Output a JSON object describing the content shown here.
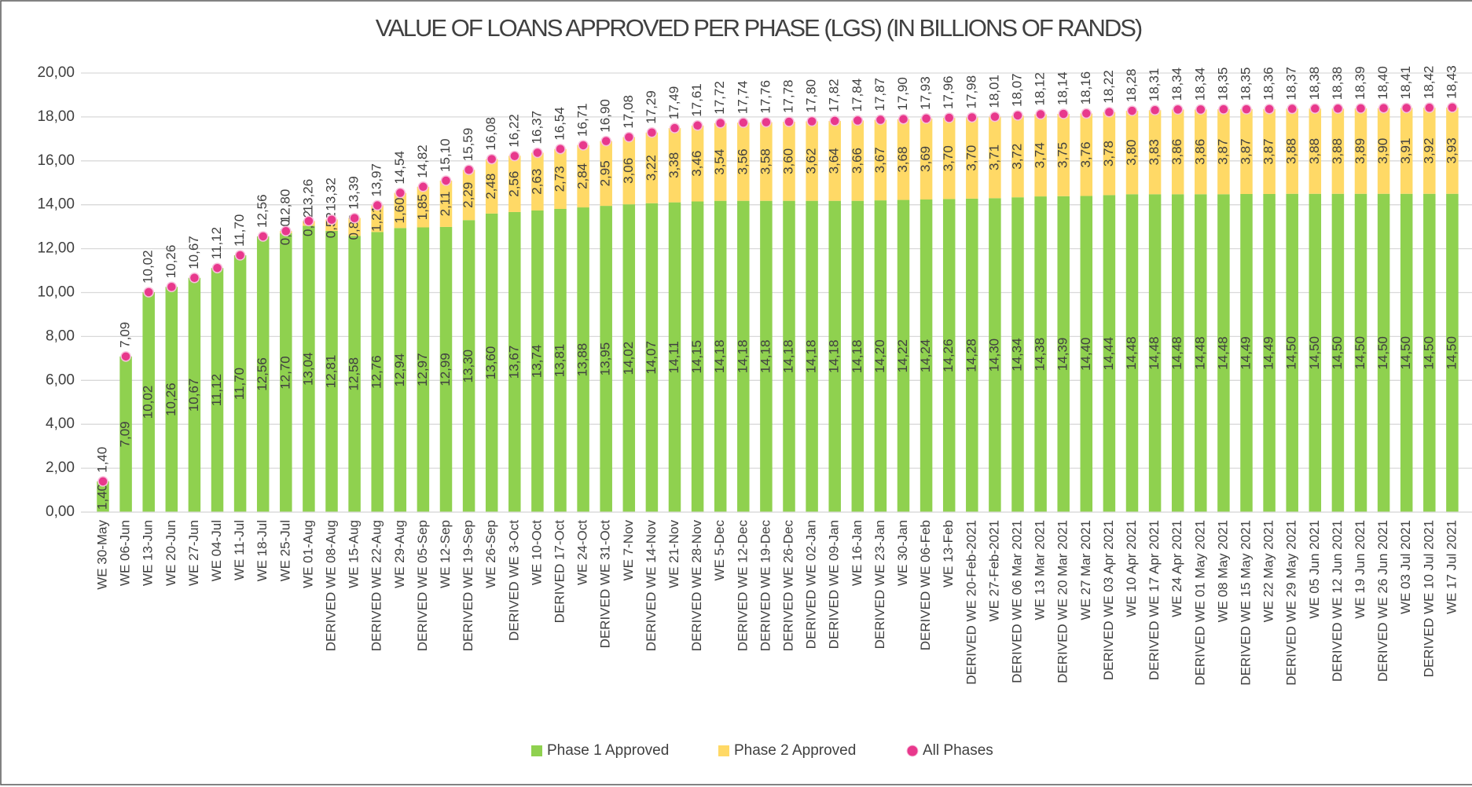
{
  "chart_data": {
    "type": "bar",
    "stacked": true,
    "title": "VALUE OF LOANS APPROVED PER PHASE (LGS) (IN BILLIONS OF RANDS)",
    "categories": [
      "WE 30-May",
      "WE 06-Jun",
      "WE 13-Jun",
      "WE 20-Jun",
      "WE 27-Jun",
      "WE 04-Jul",
      "WE 11-Jul",
      "WE 18-Jul",
      "WE 25-Jul",
      "WE 01-Aug",
      "DERIVED WE 08-Aug",
      "WE 15-Aug",
      "DERIVED WE 22-Aug",
      "WE 29-Aug",
      "DERIVED WE 05-Sep",
      "WE 12-Sep",
      "DERIVED WE 19-Sep",
      "WE 26-Sep",
      "DERIVED WE 3-Oct",
      "WE 10-Oct",
      "DERIVED 17-Oct",
      "WE 24-Oct",
      "DERIVED WE 31-Oct",
      "WE 7-Nov",
      "DERIVED WE 14-Nov",
      "WE 21-Nov",
      "DERIVED WE 28-Nov",
      "WE 5-Dec",
      "DERIVED WE 12-Dec",
      "DERIVED WE 19-Dec",
      "DERIVED WE 26-Dec",
      "DERIVED WE 02-Jan",
      "DERIVED WE 09-Jan",
      "WE 16-Jan",
      "DERIVED WE 23-Jan",
      "WE 30-Jan",
      "DERIVED WE 06-Feb",
      "WE 13-Feb",
      "DERIVED WE 20-Feb-2021",
      "WE 27-Feb-2021",
      "DERIVED WE 06 Mar 2021",
      "WE 13 Mar 2021",
      "DERIVED WE 20 Mar 2021",
      "WE 27 Mar 2021",
      "DERIVED WE 03 Apr 2021",
      "WE 10 Apr 2021",
      "DERIVED WE 17 Apr 2021",
      "WE 24 Apr 2021",
      "DERIVED WE 01 May 2021",
      "WE 08 May 2021",
      "DERIVED WE 15 May 2021",
      "WE 22 May 2021",
      "DERIVED WE 29 May 2021",
      "WE 05 Jun 2021",
      "DERIVED WE 12 Jun 2021",
      "WE 19 Jun 2021",
      "DERIVED WE 26 Jun 2021",
      "WE 03 Jul 2021",
      "DERIVED WE 10 Jul 2021",
      "WE 17 Jul 2021"
    ],
    "series": [
      {
        "name": "Phase 1 Approved",
        "type": "bar",
        "color": "#8fd14f",
        "values": [
          1.4,
          7.09,
          10.02,
          10.26,
          10.67,
          11.12,
          11.7,
          12.56,
          12.7,
          13.04,
          12.81,
          12.58,
          12.76,
          12.94,
          12.97,
          12.99,
          13.3,
          13.6,
          13.67,
          13.74,
          13.81,
          13.88,
          13.95,
          14.02,
          14.07,
          14.11,
          14.15,
          14.18,
          14.18,
          14.18,
          14.18,
          14.18,
          14.18,
          14.18,
          14.2,
          14.22,
          14.24,
          14.26,
          14.28,
          14.3,
          14.34,
          14.38,
          14.39,
          14.4,
          14.44,
          14.48,
          14.48,
          14.48,
          14.48,
          14.48,
          14.49,
          14.49,
          14.5,
          14.5,
          14.5,
          14.5,
          14.5,
          14.5,
          14.5,
          14.5
        ],
        "value_labels": [
          "1,40",
          "7,09",
          "10,02",
          "10,26",
          "10,67",
          "11,12",
          "11,70",
          "12,56",
          "12,70",
          "13,04",
          "12,81",
          "12,58",
          "12,76",
          "12,94",
          "12,97",
          "12,99",
          "13,30",
          "13,60",
          "13,67",
          "13,74",
          "13,81",
          "13,88",
          "13,95",
          "14,02",
          "14,07",
          "14,11",
          "14,15",
          "14,18",
          "14,18",
          "14,18",
          "14,18",
          "14,18",
          "14,18",
          "14,18",
          "14,20",
          "14,22",
          "14,24",
          "14,26",
          "14,28",
          "14,30",
          "14,34",
          "14,38",
          "14,39",
          "14,40",
          "14,44",
          "14,48",
          "14,48",
          "14,48",
          "14,48",
          "14,48",
          "14,49",
          "14,49",
          "14,50",
          "14,50",
          "14,50",
          "14,50",
          "14,50",
          "14,50",
          "14,50",
          "14,50"
        ]
      },
      {
        "name": "Phase 2 Approved",
        "type": "bar",
        "color": "#ffd966",
        "values": [
          null,
          null,
          null,
          null,
          null,
          null,
          null,
          null,
          0.1,
          0.22,
          0.52,
          0.82,
          1.21,
          1.6,
          1.85,
          2.11,
          2.29,
          2.48,
          2.56,
          2.63,
          2.73,
          2.84,
          2.95,
          3.06,
          3.22,
          3.38,
          3.46,
          3.54,
          3.56,
          3.58,
          3.6,
          3.62,
          3.64,
          3.66,
          3.67,
          3.68,
          3.69,
          3.7,
          3.7,
          3.71,
          3.72,
          3.74,
          3.75,
          3.76,
          3.78,
          3.8,
          3.83,
          3.86,
          3.86,
          3.87,
          3.87,
          3.87,
          3.88,
          3.88,
          3.88,
          3.89,
          3.9,
          3.91,
          3.92,
          3.93
        ],
        "value_labels": [
          null,
          null,
          null,
          null,
          null,
          null,
          null,
          null,
          "0,10",
          "0,22",
          "0,52",
          "0,82",
          "1,21",
          "1,60",
          "1,85",
          "2,11",
          "2,29",
          "2,48",
          "2,56",
          "2,63",
          "2,73",
          "2,84",
          "2,95",
          "3,06",
          "3,22",
          "3,38",
          "3,46",
          "3,54",
          "3,56",
          "3,58",
          "3,60",
          "3,62",
          "3,64",
          "3,66",
          "3,67",
          "3,68",
          "3,69",
          "3,70",
          "3,70",
          "3,71",
          "3,72",
          "3,74",
          "3,75",
          "3,76",
          "3,78",
          "3,80",
          "3,83",
          "3,86",
          "3,86",
          "3,87",
          "3,87",
          "3,87",
          "3,88",
          "3,88",
          "3,88",
          "3,89",
          "3,90",
          "3,91",
          "3,92",
          "3,93"
        ]
      },
      {
        "name": "All Phases",
        "type": "scatter",
        "color": "#e8388c",
        "values": [
          1.4,
          7.09,
          10.02,
          10.26,
          10.67,
          11.12,
          11.7,
          12.56,
          12.8,
          13.26,
          13.32,
          13.39,
          13.97,
          14.54,
          14.82,
          15.1,
          15.59,
          16.08,
          16.22,
          16.37,
          16.54,
          16.71,
          16.9,
          17.08,
          17.29,
          17.49,
          17.61,
          17.72,
          17.74,
          17.76,
          17.78,
          17.8,
          17.82,
          17.84,
          17.87,
          17.9,
          17.93,
          17.96,
          17.98,
          18.01,
          18.07,
          18.12,
          18.14,
          18.16,
          18.22,
          18.28,
          18.31,
          18.34,
          18.34,
          18.35,
          18.35,
          18.36,
          18.37,
          18.38,
          18.38,
          18.39,
          18.4,
          18.41,
          18.42,
          18.43
        ],
        "value_labels": [
          "1,40",
          "7,09",
          "10,02",
          "10,26",
          "10,67",
          "11,12",
          "11,70",
          "12,56",
          "12,80",
          "13,26",
          "13,32",
          "13,39",
          "13,97",
          "14,54",
          "14,82",
          "15,10",
          "15,59",
          "16,08",
          "16,22",
          "16,37",
          "16,54",
          "16,71",
          "16,90",
          "17,08",
          "17,29",
          "17,49",
          "17,61",
          "17,72",
          "17,74",
          "17,76",
          "17,78",
          "17,80",
          "17,82",
          "17,84",
          "17,87",
          "17,90",
          "17,93",
          "17,96",
          "17,98",
          "18,01",
          "18,07",
          "18,12",
          "18,14",
          "18,16",
          "18,22",
          "18,28",
          "18,31",
          "18,34",
          "18,34",
          "18,35",
          "18,35",
          "18,36",
          "18,37",
          "18,38",
          "18,38",
          "18,39",
          "18,40",
          "18,41",
          "18,42",
          "18,43"
        ]
      }
    ],
    "ylim": [
      0,
      20
    ],
    "yticks": [
      {
        "value": 0,
        "label": "0,00"
      },
      {
        "value": 2,
        "label": "2,00"
      },
      {
        "value": 4,
        "label": "4,00"
      },
      {
        "value": 6,
        "label": "6,00"
      },
      {
        "value": 8,
        "label": "8,00"
      },
      {
        "value": 10,
        "label": "10,00"
      },
      {
        "value": 12,
        "label": "12,00"
      },
      {
        "value": 14,
        "label": "14,00"
      },
      {
        "value": 16,
        "label": "16,00"
      },
      {
        "value": 18,
        "label": "18,00"
      },
      {
        "value": 20,
        "label": "20,00"
      }
    ],
    "grid": true,
    "legend": "bottom"
  }
}
